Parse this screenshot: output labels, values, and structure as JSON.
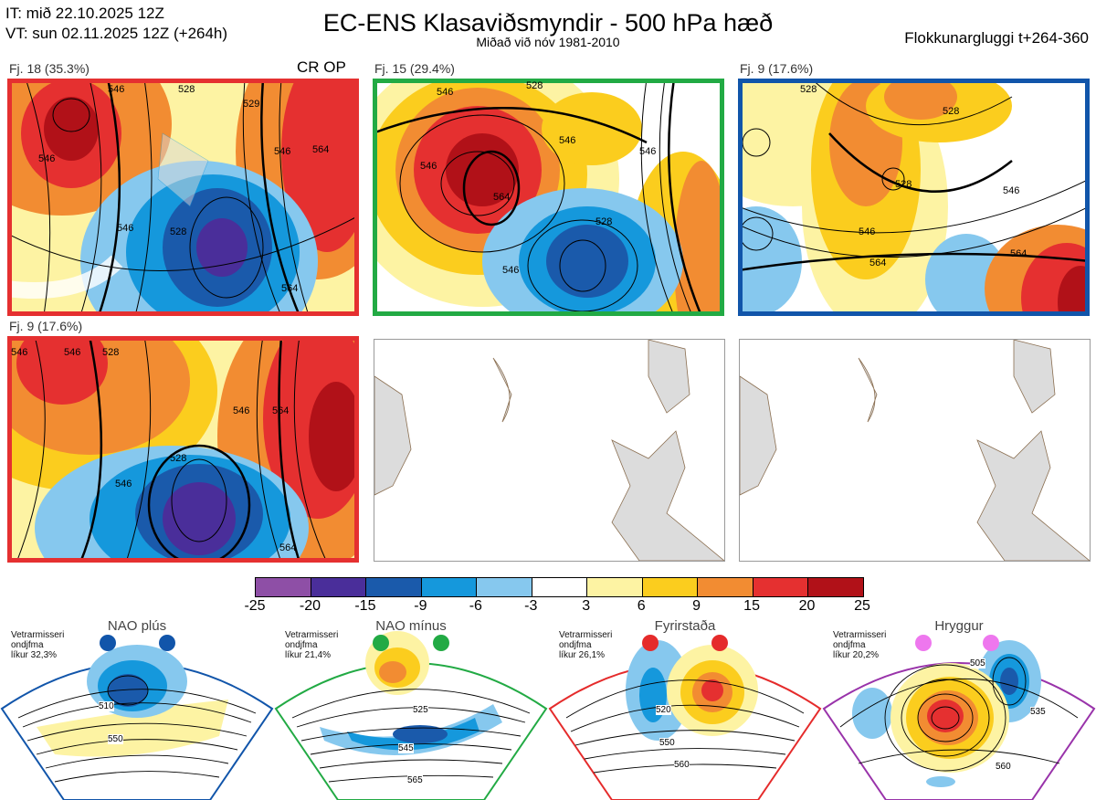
{
  "header": {
    "it_line": "IT: mið 22.10.2025 12Z",
    "vt_line": "VT: sun 02.11.2025 12Z  (+264h)",
    "title": "EC-ENS Klasaviðsmyndir - 500 hPa hæð",
    "subtitle": "Miðað við nóv 1981-2010",
    "window_label": "Flokkunargluggi t+264-360"
  },
  "clusters": [
    {
      "label": "Fj. 18 (35.3%)",
      "tag": "CR OP",
      "frame_color": "#e53030",
      "contour_labels": [
        "546",
        "528",
        "546",
        "528",
        "546",
        "564",
        "529",
        "546",
        "564"
      ]
    },
    {
      "label": "Fj. 15 (29.4%)",
      "tag": "",
      "frame_color": "#22aa44",
      "contour_labels": [
        "546",
        "528",
        "546",
        "564",
        "546",
        "528",
        "546",
        "546"
      ]
    },
    {
      "label": "Fj. 9 (17.6%)",
      "tag": "",
      "frame_color": "#1155aa",
      "contour_labels": [
        "528",
        "528",
        "528",
        "546",
        "546",
        "564",
        "564"
      ]
    },
    {
      "label": "Fj. 9 (17.6%)",
      "tag": "",
      "frame_color": "#e53030",
      "contour_labels": [
        "546",
        "546",
        "528",
        "546",
        "564",
        "528",
        "546",
        "564"
      ]
    }
  ],
  "colorbar": {
    "ticks": [
      "-25",
      "-20",
      "-15",
      "-9",
      "-6",
      "-3",
      "3",
      "6",
      "9",
      "15",
      "20",
      "25"
    ],
    "colors": [
      "#8e4fa6",
      "#4a2e9a",
      "#1a5aab",
      "#1598dc",
      "#86c8ee",
      "#ffffff",
      "#fdf3a3",
      "#fbcd1e",
      "#f28c32",
      "#e53030",
      "#b11118"
    ]
  },
  "regimes": [
    {
      "name": "NAO plús",
      "note_line1": "Vetrarmisseri",
      "note_line2": "ondjfma",
      "note_line3": "líkur 32,3%",
      "color": "#1155aa",
      "contour_labels": [
        "510",
        "550"
      ]
    },
    {
      "name": "NAO mínus",
      "note_line1": "Vetrarmisseri",
      "note_line2": "ondjfma",
      "note_line3": "líkur 21,4%",
      "color": "#22aa44",
      "contour_labels": [
        "525",
        "545",
        "565"
      ]
    },
    {
      "name": "Fyrirstaða",
      "note_line1": "Vetrarmisseri",
      "note_line2": "ondjfma",
      "note_line3": "líkur 26,1%",
      "color": "#e52b2b",
      "contour_labels": [
        "520",
        "550",
        "560"
      ]
    },
    {
      "name": "Hryggur",
      "note_line1": "Vetrarmisseri",
      "note_line2": "ondjfma",
      "note_line3": "líkur 20,2%",
      "color": "#ee77ee",
      "contour_labels": [
        "505",
        "535",
        "560"
      ]
    }
  ]
}
